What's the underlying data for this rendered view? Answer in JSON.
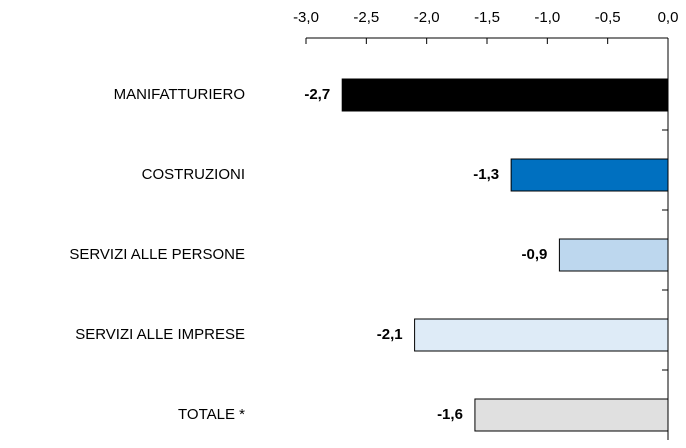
{
  "chart_data": {
    "type": "barh",
    "categories": [
      "MANIFATTURIERO",
      "COSTRUZIONI",
      "SERVIZI ALLE PERSONE",
      "SERVIZI ALLE IMPRESE",
      "TOTALE *"
    ],
    "values": [
      -2.7,
      -1.3,
      -0.9,
      -2.1,
      -1.6
    ],
    "value_labels": [
      "-2,7",
      "-1,3",
      "-0,9",
      "-2,1",
      "-1,6"
    ],
    "colors": [
      "#000000",
      "#0070c0",
      "#bdd7ee",
      "#deebf7",
      "#e0e0e0"
    ],
    "xlim": [
      -3.0,
      0.0
    ],
    "xticks": [
      {
        "value": -3.0,
        "label": "-3,0"
      },
      {
        "value": -2.5,
        "label": "-2,5"
      },
      {
        "value": -2.0,
        "label": "-2,0"
      },
      {
        "value": -1.5,
        "label": "-1,5"
      },
      {
        "value": -1.0,
        "label": "-1,0"
      },
      {
        "value": -0.5,
        "label": "-0,5"
      },
      {
        "value": 0.0,
        "label": "0,0"
      }
    ]
  }
}
